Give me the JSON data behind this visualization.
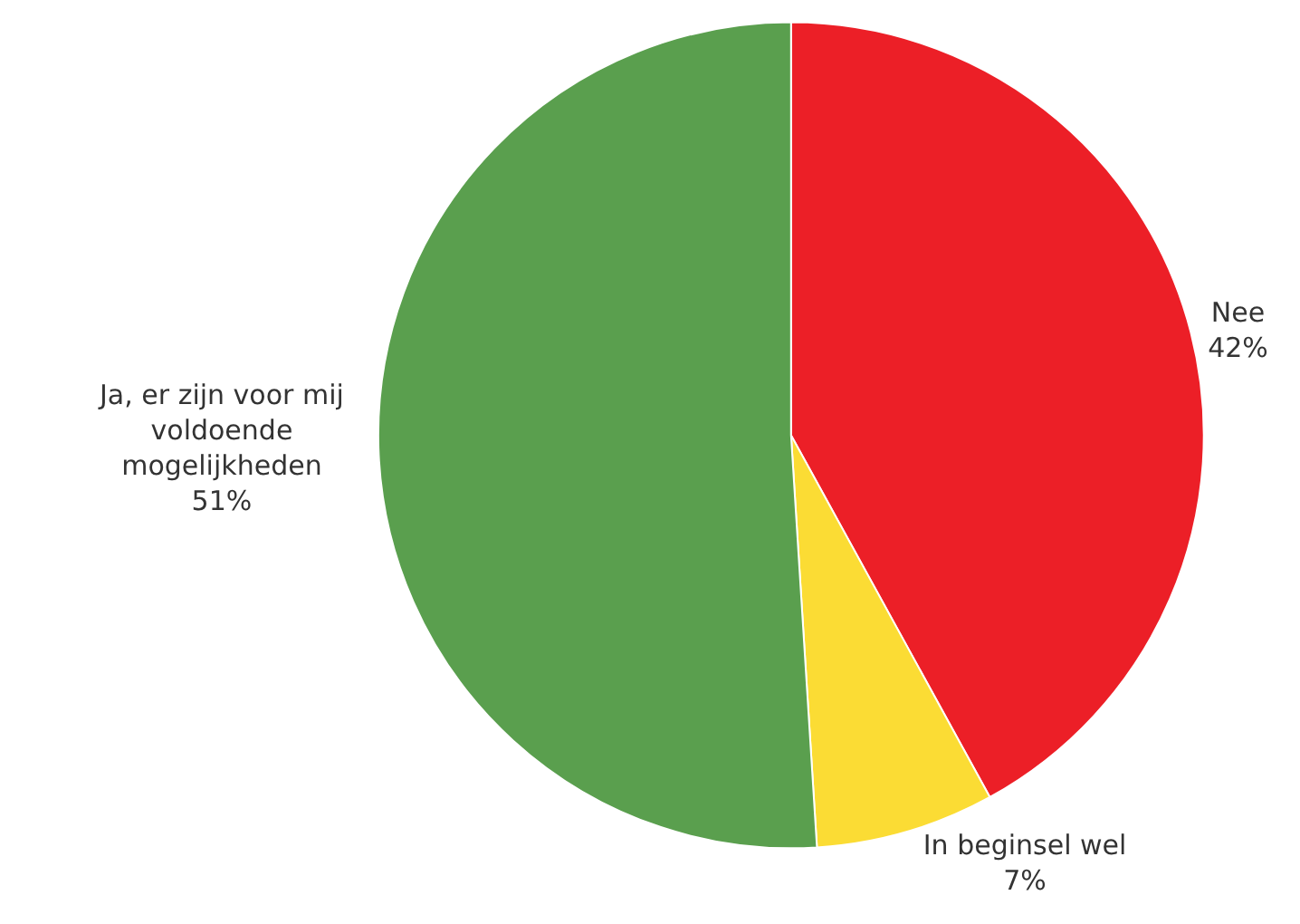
{
  "chart_data": {
    "type": "pie",
    "categories": [
      "Nee",
      "In beginsel wel",
      "Ja, er zijn voor mij\nvoldoende\nmogelijkheden"
    ],
    "values": [
      42,
      7,
      51
    ],
    "value_labels": [
      "42%",
      "7%",
      "51%"
    ],
    "colors": [
      "#ec1f27",
      "#fbdc34",
      "#5a9f4e"
    ],
    "legend": false
  }
}
